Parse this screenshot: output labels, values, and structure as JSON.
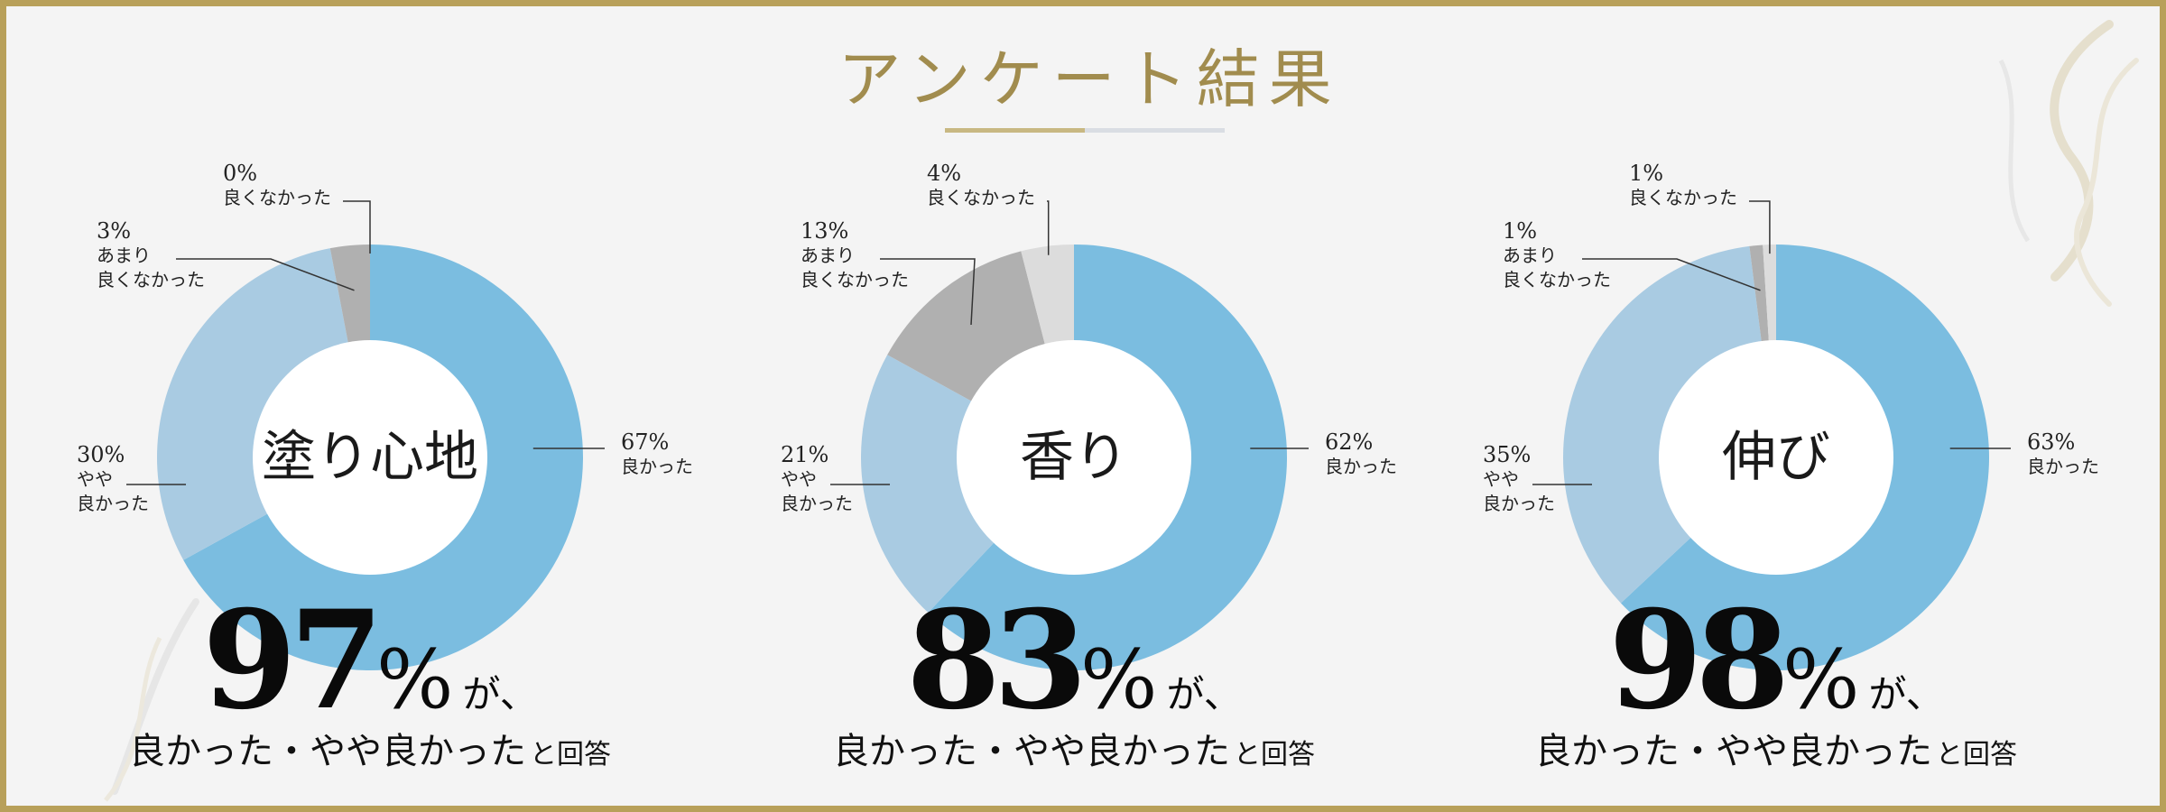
{
  "title": "アンケート結果",
  "colors": {
    "good": "#7bbde0",
    "somewhat_good": "#a9cbe2",
    "somewhat_bad": "#b0b0b0",
    "bad": "#dcdcdc",
    "accent_gold": "#a18c4e",
    "frame": "#b8a05a"
  },
  "chart_data": [
    {
      "type": "pie",
      "center_label": "塗り心地",
      "slices": [
        {
          "key": "good",
          "percent": "67%",
          "value": 67,
          "label": "良かった"
        },
        {
          "key": "somewhat_good",
          "percent": "30%",
          "value": 30,
          "label": "やや\n良かった"
        },
        {
          "key": "somewhat_bad",
          "percent": "3%",
          "value": 3,
          "label": "あまり\n良くなかった"
        },
        {
          "key": "bad",
          "percent": "0%",
          "value": 0,
          "label": "良くなかった"
        }
      ],
      "summary_value": "97",
      "summary_unit": "%",
      "summary_suffix": "が、",
      "summary_text": "良かった・やや良かった",
      "summary_tail": "と回答"
    },
    {
      "type": "pie",
      "center_label": "香り",
      "slices": [
        {
          "key": "good",
          "percent": "62%",
          "value": 62,
          "label": "良かった"
        },
        {
          "key": "somewhat_good",
          "percent": "21%",
          "value": 21,
          "label": "やや\n良かった"
        },
        {
          "key": "somewhat_bad",
          "percent": "13%",
          "value": 13,
          "label": "あまり\n良くなかった"
        },
        {
          "key": "bad",
          "percent": "4%",
          "value": 4,
          "label": "良くなかった"
        }
      ],
      "summary_value": "83",
      "summary_unit": "%",
      "summary_suffix": "が、",
      "summary_text": "良かった・やや良かった",
      "summary_tail": "と回答"
    },
    {
      "type": "pie",
      "center_label": "伸び",
      "slices": [
        {
          "key": "good",
          "percent": "63%",
          "value": 63,
          "label": "良かった"
        },
        {
          "key": "somewhat_good",
          "percent": "35%",
          "value": 35,
          "label": "やや\n良かった"
        },
        {
          "key": "somewhat_bad",
          "percent": "1%",
          "value": 1,
          "label": "あまり\n良くなかった"
        },
        {
          "key": "bad",
          "percent": "1%",
          "value": 1,
          "label": "良くなかった"
        }
      ],
      "summary_value": "98",
      "summary_unit": "%",
      "summary_suffix": "が、",
      "summary_text": "良かった・やや良かった",
      "summary_tail": "と回答"
    }
  ]
}
